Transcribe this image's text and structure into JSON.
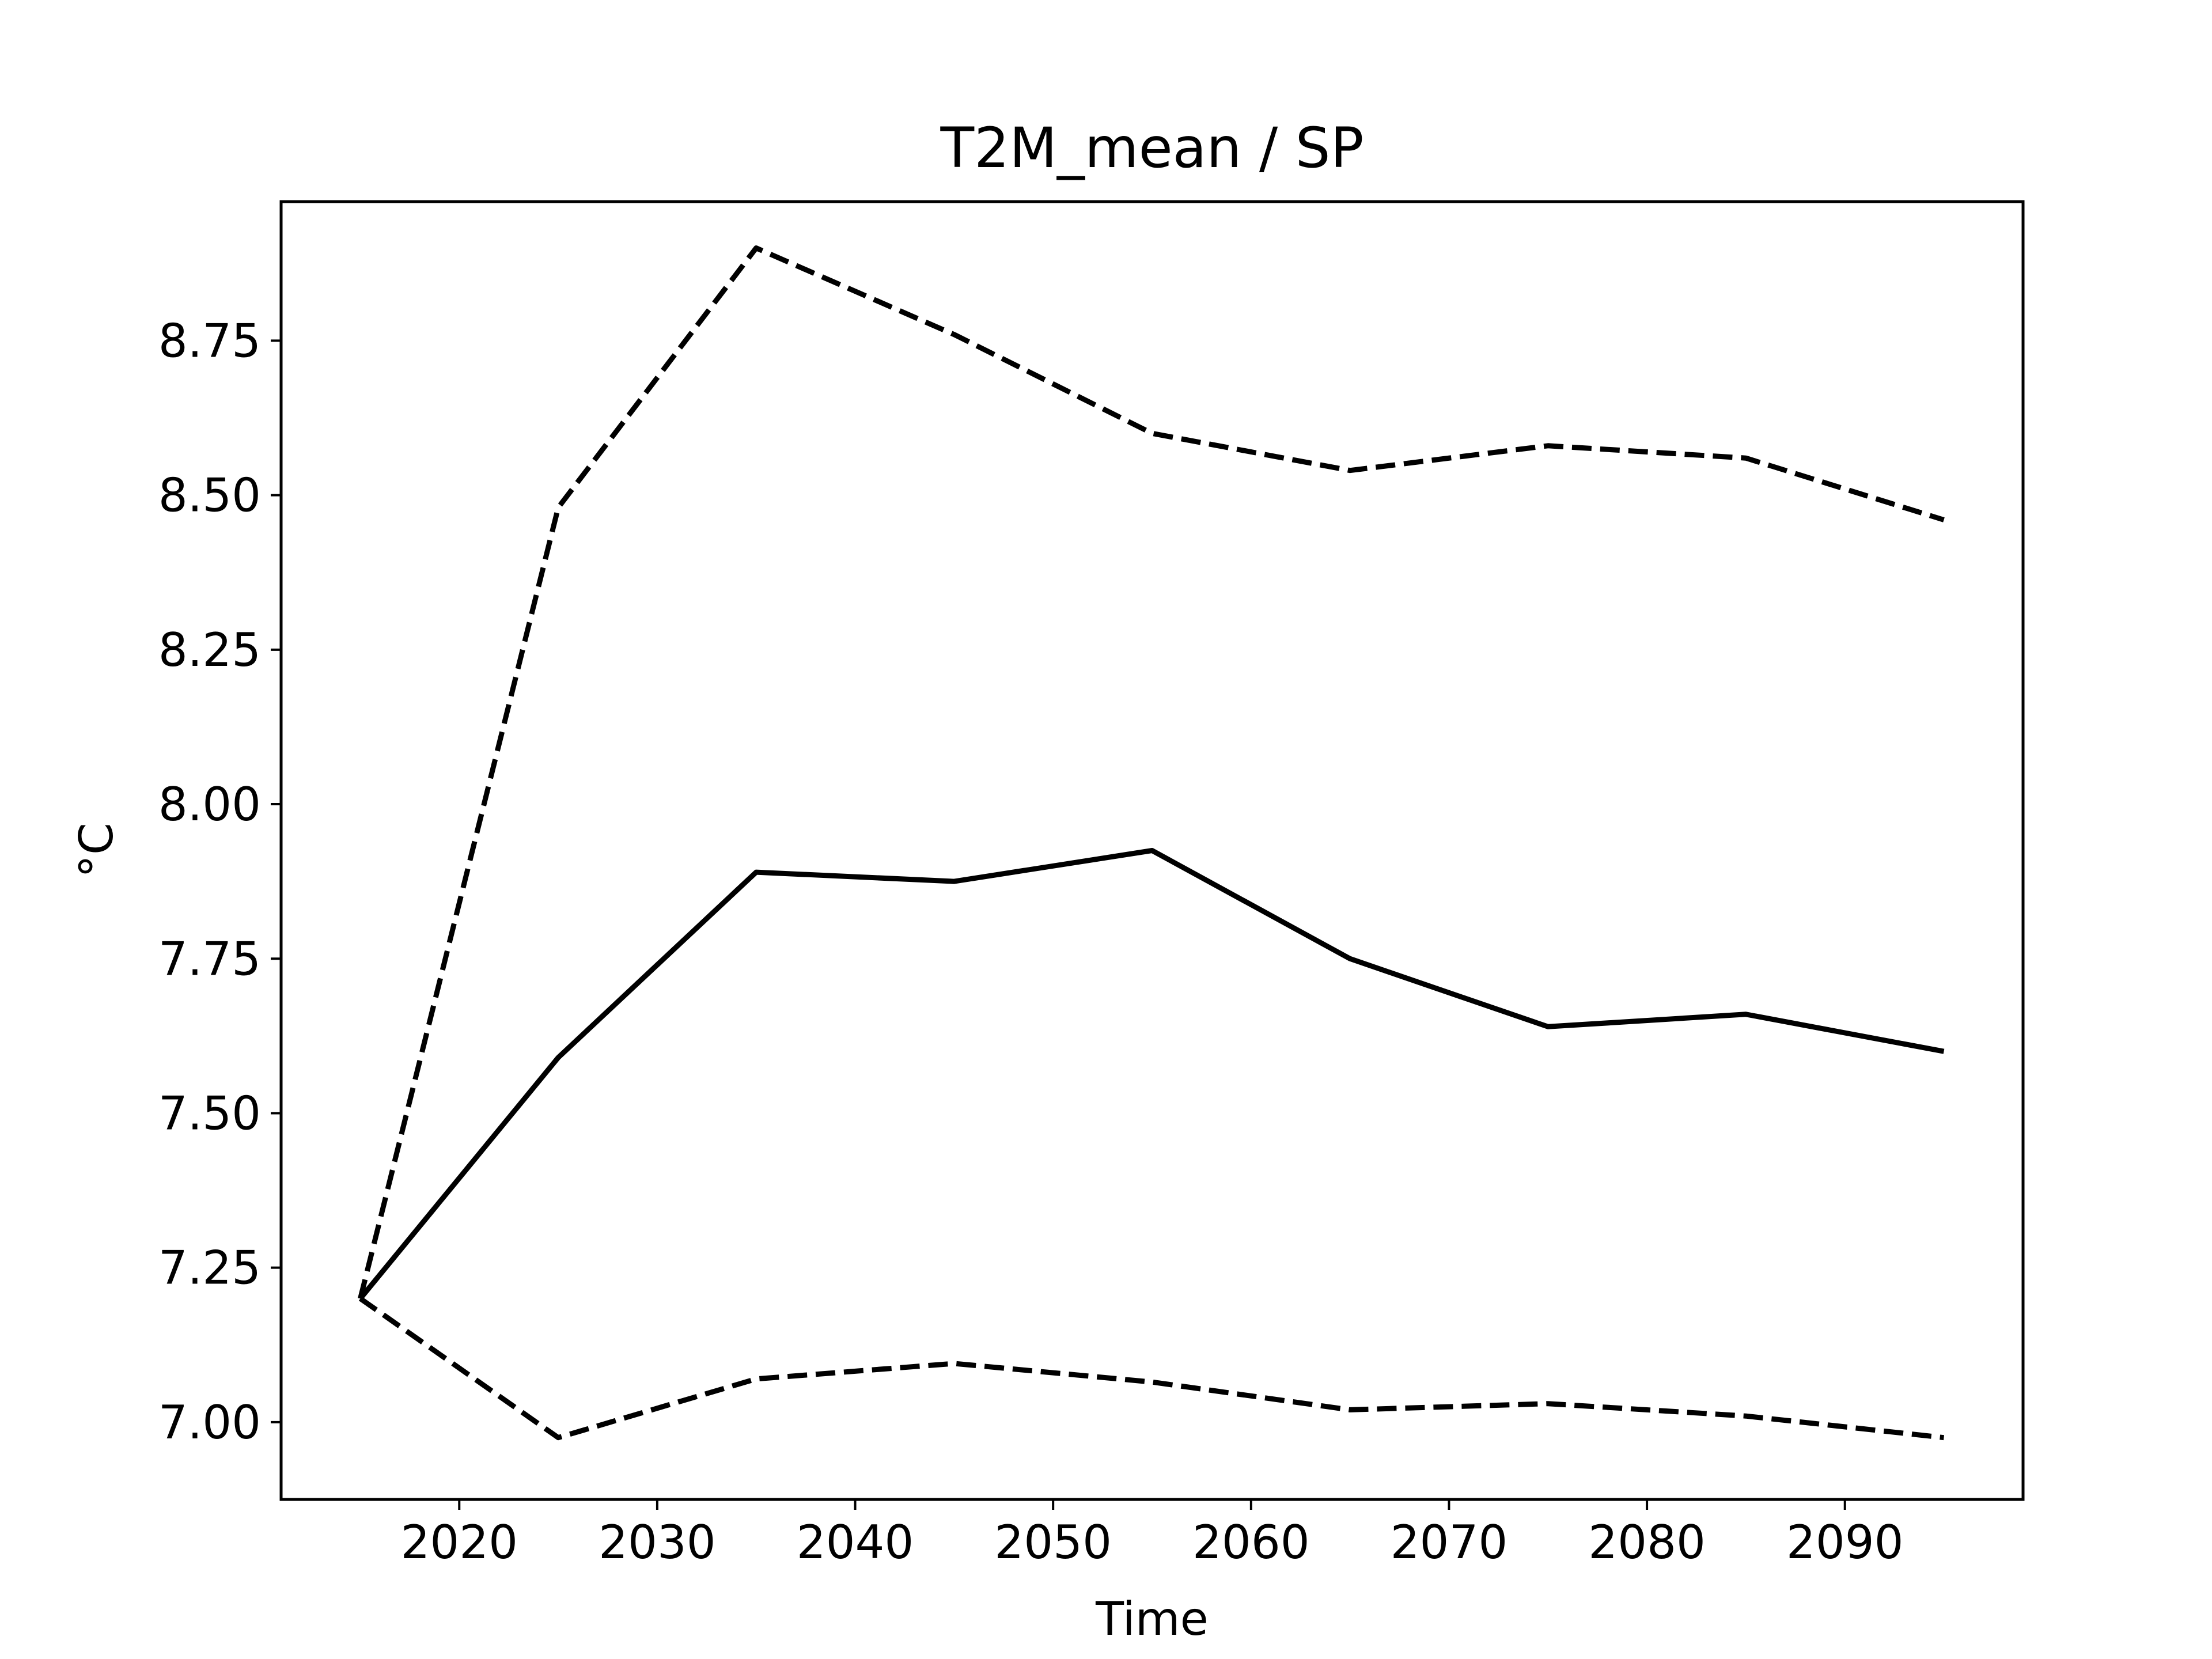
{
  "chart_data": {
    "type": "line",
    "title": "T2M_mean / SP",
    "xlabel": "Time",
    "ylabel": "°C",
    "xlim": [
      2011,
      2099
    ],
    "ylim": [
      6.875,
      8.975
    ],
    "xticks": [
      2020,
      2030,
      2040,
      2050,
      2060,
      2070,
      2080,
      2090
    ],
    "yticks": [
      7.0,
      7.25,
      7.5,
      7.75,
      8.0,
      8.25,
      8.5,
      8.75
    ],
    "ytick_labels": [
      "7.00",
      "7.25",
      "7.50",
      "7.75",
      "8.00",
      "8.25",
      "8.50",
      "8.75"
    ],
    "grid": false,
    "legend": null,
    "x": [
      2015,
      2025,
      2035,
      2045,
      2055,
      2065,
      2075,
      2085,
      2095
    ],
    "series": [
      {
        "style": "solid",
        "color": "#000000",
        "values": [
          7.2,
          7.59,
          7.89,
          7.875,
          7.925,
          7.75,
          7.64,
          7.66,
          7.6
        ]
      },
      {
        "style": "dashed",
        "color": "#000000",
        "values": [
          7.2,
          8.48,
          8.9,
          8.76,
          8.6,
          8.54,
          8.58,
          8.56,
          8.46
        ]
      },
      {
        "style": "dashed",
        "color": "#000000",
        "values": [
          7.2,
          6.975,
          7.07,
          7.095,
          7.065,
          7.02,
          7.03,
          7.01,
          6.975
        ]
      }
    ]
  }
}
